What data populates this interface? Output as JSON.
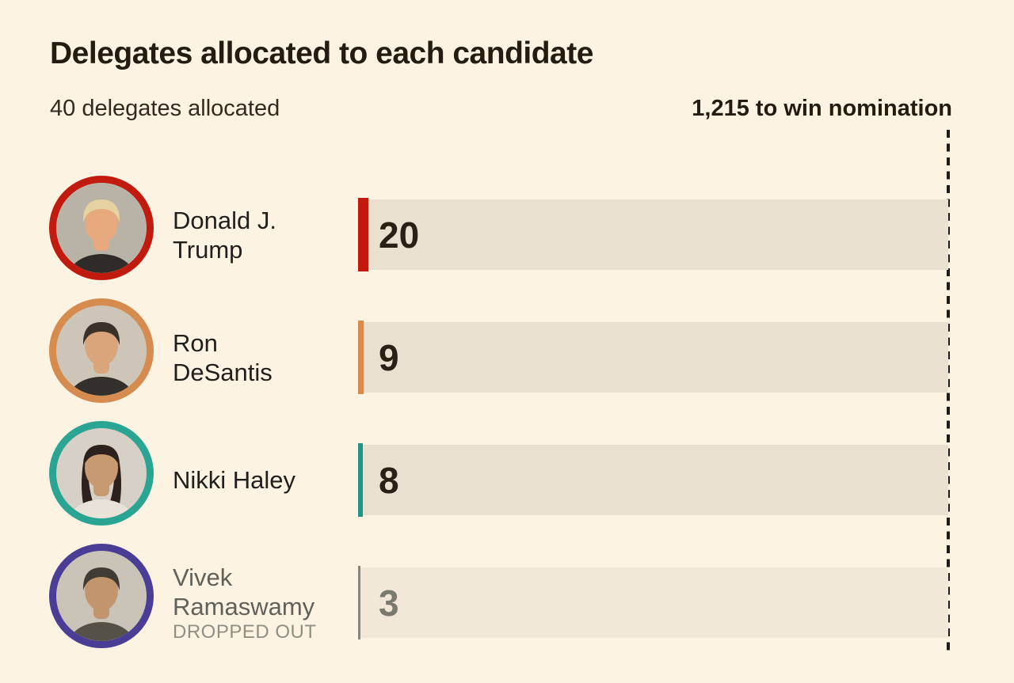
{
  "chart_data": {
    "type": "bar",
    "title": "Delegates allocated to each candidate",
    "subtitle_left": "40 delegates allocated",
    "subtitle_right": "1,215 to win nomination",
    "total_allocated": 40,
    "threshold_value": 1215,
    "xlim": [
      0,
      1215
    ],
    "grid": false,
    "legend": false,
    "categories": [
      "Donald J. Trump",
      "Ron DeSantis",
      "Nikki Haley",
      "Vivek Ramaswamy"
    ],
    "values": [
      20,
      9,
      8,
      3
    ],
    "track_color": "#eae0cf",
    "track_color_dropped": "#f2e8d8",
    "background_color": "#fcf3e3",
    "threshold_line_color": "#1f1b16",
    "candidates": [
      {
        "name": "Donald J. Trump",
        "name_line1": "Donald J.",
        "name_line2": "Trump",
        "status": "",
        "value": 20,
        "ring_color": "#c11b10",
        "tick_color": "#c2190c",
        "dropped_out": false,
        "avatar": {
          "bg": "#b9b2a6",
          "suit": "#2f2b28",
          "skin": "#e8a97e",
          "hair": "#e6d2a0",
          "side_hair": "none"
        }
      },
      {
        "name": "Ron DeSantis",
        "name_line1": "Ron",
        "name_line2": "DeSantis",
        "status": "",
        "value": 9,
        "ring_color": "#d78c4f",
        "tick_color": "#d78c4f",
        "dropped_out": false,
        "avatar": {
          "bg": "#cdc5b8",
          "suit": "#33302c",
          "skin": "#dba57c",
          "hair": "#3a3129",
          "side_hair": "none"
        }
      },
      {
        "name": "Nikki Haley",
        "name_line1": "Nikki Haley",
        "name_line2": "",
        "status": "",
        "value": 8,
        "ring_color": "#2aa493",
        "tick_color": "#1f9583",
        "dropped_out": false,
        "avatar": {
          "bg": "#d6d0c6",
          "suit": "#e9e2d8",
          "skin": "#c89a72",
          "hair": "#2c211c",
          "side_hair": "#2c211c"
        }
      },
      {
        "name": "Vivek Ramaswamy",
        "name_line1": "Vivek",
        "name_line2": "Ramaswamy",
        "status": "DROPPED OUT",
        "value": 3,
        "ring_color": "#4a3d96",
        "tick_color": "#85857b",
        "dropped_out": true,
        "avatar": {
          "bg": "#c9c2b6",
          "suit": "#3a362f",
          "skin": "#c08a5c",
          "hair": "#221d19",
          "side_hair": "none"
        }
      }
    ]
  }
}
